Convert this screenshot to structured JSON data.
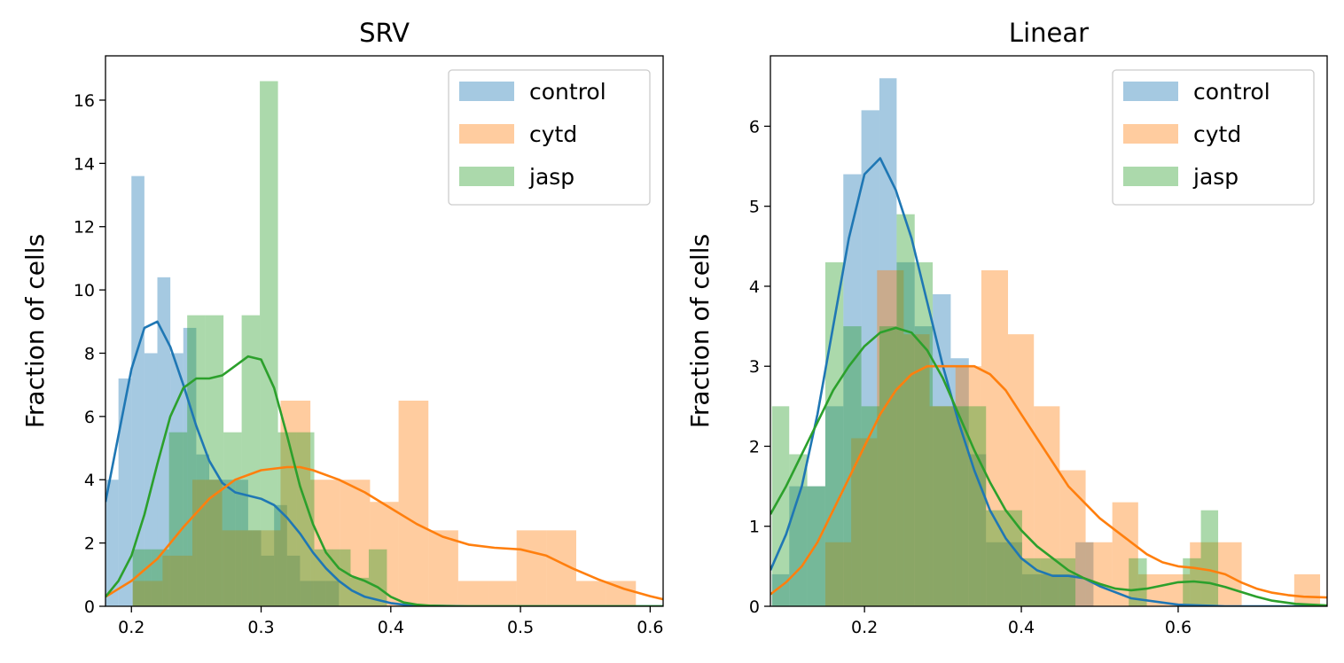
{
  "chart_data": [
    {
      "type": "bar",
      "title": "SRV",
      "xlabel": "",
      "ylabel": "Fraction of cells",
      "xlim": [
        0.18,
        0.61
      ],
      "ylim": [
        0,
        17.4
      ],
      "xticks": [
        0.2,
        0.3,
        0.4,
        0.5,
        0.6
      ],
      "xtick_labels": [
        "0.2",
        "0.3",
        "0.4",
        "0.5",
        "0.6"
      ],
      "yticks": [
        0,
        2,
        4,
        6,
        8,
        10,
        12,
        14,
        16
      ],
      "ytick_labels": [
        "0",
        "2",
        "4",
        "6",
        "8",
        "10",
        "12",
        "14",
        "16"
      ],
      "legend_position": "top-right",
      "grid": false,
      "series": [
        {
          "name": "control",
          "color": "#1f77b4",
          "hist_edges": [
            0.17,
            0.18,
            0.19,
            0.2,
            0.21,
            0.22,
            0.23,
            0.24,
            0.25,
            0.26,
            0.27,
            0.28,
            0.29,
            0.3,
            0.31,
            0.32,
            0.33,
            0.34,
            0.35,
            0.36
          ],
          "hist_values": [
            3.3,
            4.0,
            7.2,
            13.6,
            8.0,
            10.4,
            8.0,
            8.8,
            4.8,
            4.0,
            4.0,
            4.0,
            2.4,
            1.6,
            3.2,
            1.6,
            0.8,
            0.8,
            0.8
          ],
          "kde_x": [
            0.18,
            0.19,
            0.2,
            0.21,
            0.22,
            0.23,
            0.24,
            0.25,
            0.26,
            0.27,
            0.28,
            0.29,
            0.3,
            0.31,
            0.32,
            0.33,
            0.34,
            0.35,
            0.36,
            0.37,
            0.38,
            0.39,
            0.4,
            0.41,
            0.42,
            0.44,
            0.46,
            0.5,
            0.61
          ],
          "kde_y": [
            3.3,
            5.4,
            7.5,
            8.8,
            9.0,
            8.2,
            7.0,
            5.7,
            4.6,
            3.9,
            3.6,
            3.5,
            3.4,
            3.2,
            2.8,
            2.3,
            1.7,
            1.2,
            0.8,
            0.5,
            0.3,
            0.2,
            0.1,
            0.05,
            0.02,
            0.01,
            0.0,
            0.0,
            0.0
          ]
        },
        {
          "name": "cytd",
          "color": "#ff7f0e",
          "hist_edges": [
            0.179,
            0.201,
            0.224,
            0.247,
            0.27,
            0.293,
            0.315,
            0.338,
            0.361,
            0.384,
            0.406,
            0.429,
            0.452,
            0.475,
            0.497,
            0.52,
            0.543,
            0.566,
            0.589
          ],
          "hist_values": [
            0.0,
            0.8,
            1.6,
            4.0,
            2.4,
            2.4,
            6.5,
            4.0,
            4.0,
            3.3,
            6.5,
            2.4,
            0.8,
            0.8,
            2.4,
            2.4,
            0.8,
            0.8
          ],
          "kde_x": [
            0.18,
            0.2,
            0.22,
            0.24,
            0.26,
            0.28,
            0.3,
            0.32,
            0.33,
            0.34,
            0.36,
            0.38,
            0.4,
            0.42,
            0.44,
            0.46,
            0.48,
            0.5,
            0.52,
            0.54,
            0.56,
            0.58,
            0.6,
            0.61
          ],
          "kde_y": [
            0.3,
            0.8,
            1.5,
            2.5,
            3.4,
            4.0,
            4.3,
            4.4,
            4.4,
            4.3,
            4.0,
            3.6,
            3.1,
            2.6,
            2.2,
            1.95,
            1.85,
            1.8,
            1.6,
            1.2,
            0.85,
            0.55,
            0.32,
            0.22
          ]
        },
        {
          "name": "jasp",
          "color": "#2ca02c",
          "hist_edges": [
            0.201,
            0.215,
            0.229,
            0.243,
            0.257,
            0.271,
            0.285,
            0.299,
            0.313,
            0.327,
            0.341,
            0.355,
            0.369,
            0.383,
            0.397
          ],
          "hist_values": [
            1.8,
            1.8,
            5.5,
            9.2,
            9.2,
            5.5,
            9.2,
            16.6,
            5.5,
            5.5,
            1.8,
            1.8,
            0.9,
            1.8
          ],
          "kde_x": [
            0.18,
            0.19,
            0.2,
            0.21,
            0.22,
            0.23,
            0.24,
            0.25,
            0.26,
            0.27,
            0.28,
            0.29,
            0.3,
            0.31,
            0.32,
            0.33,
            0.34,
            0.35,
            0.36,
            0.37,
            0.38,
            0.39,
            0.4,
            0.41,
            0.42,
            0.43,
            0.45,
            0.61
          ],
          "kde_y": [
            0.3,
            0.8,
            1.6,
            2.9,
            4.5,
            6.0,
            6.9,
            7.2,
            7.2,
            7.3,
            7.6,
            7.9,
            7.8,
            6.9,
            5.4,
            3.8,
            2.6,
            1.7,
            1.2,
            0.95,
            0.8,
            0.6,
            0.3,
            0.12,
            0.05,
            0.02,
            0.0,
            0.0
          ]
        }
      ]
    },
    {
      "type": "bar",
      "title": "Linear",
      "xlabel": "",
      "ylabel": "Fraction of cells",
      "xlim": [
        0.08,
        0.79
      ],
      "ylim": [
        0,
        6.88
      ],
      "xticks": [
        0.2,
        0.4,
        0.6
      ],
      "xtick_labels": [
        "0.2",
        "0.4",
        "0.6"
      ],
      "yticks": [
        0,
        1,
        2,
        3,
        4,
        5,
        6
      ],
      "ytick_labels": [
        "0",
        "1",
        "2",
        "3",
        "4",
        "5",
        "6"
      ],
      "legend_position": "top-right",
      "grid": false,
      "series": [
        {
          "name": "control",
          "color": "#1f77b4",
          "hist_edges": [
            0.082,
            0.104,
            0.127,
            0.15,
            0.173,
            0.196,
            0.219,
            0.241,
            0.264,
            0.287,
            0.31,
            0.333,
            0.355,
            0.378,
            0.401,
            0.424,
            0.447,
            0.469,
            0.492
          ],
          "hist_values": [
            0.4,
            1.5,
            1.5,
            2.5,
            5.4,
            6.2,
            6.6,
            4.3,
            3.5,
            3.9,
            3.1,
            1.9,
            0.8,
            0.8,
            0.4,
            0.4,
            0.4,
            0.8
          ],
          "kde_x": [
            0.08,
            0.1,
            0.12,
            0.14,
            0.16,
            0.18,
            0.2,
            0.22,
            0.24,
            0.26,
            0.28,
            0.3,
            0.32,
            0.34,
            0.36,
            0.38,
            0.4,
            0.42,
            0.44,
            0.46,
            0.48,
            0.5,
            0.54,
            0.6,
            0.66,
            0.79
          ],
          "kde_y": [
            0.45,
            0.9,
            1.5,
            2.4,
            3.5,
            4.6,
            5.4,
            5.6,
            5.2,
            4.6,
            3.8,
            3.0,
            2.3,
            1.7,
            1.2,
            0.85,
            0.6,
            0.45,
            0.38,
            0.38,
            0.35,
            0.25,
            0.1,
            0.02,
            0.0,
            0.0
          ]
        },
        {
          "name": "cytd",
          "color": "#ff7f0e",
          "hist_edges": [
            0.15,
            0.183,
            0.216,
            0.25,
            0.283,
            0.316,
            0.349,
            0.383,
            0.416,
            0.449,
            0.482,
            0.516,
            0.549,
            0.582,
            0.615,
            0.648,
            0.681,
            0.715,
            0.748,
            0.781
          ],
          "hist_values": [
            0.8,
            2.1,
            4.2,
            3.4,
            2.5,
            3.0,
            4.2,
            3.4,
            2.5,
            1.7,
            0.8,
            1.3,
            0.4,
            0.4,
            0.8,
            0.8,
            0.0,
            0.0,
            0.4
          ],
          "kde_x": [
            0.08,
            0.1,
            0.12,
            0.14,
            0.16,
            0.18,
            0.2,
            0.22,
            0.24,
            0.26,
            0.28,
            0.3,
            0.32,
            0.34,
            0.36,
            0.38,
            0.4,
            0.42,
            0.44,
            0.46,
            0.48,
            0.5,
            0.52,
            0.54,
            0.56,
            0.58,
            0.6,
            0.62,
            0.64,
            0.66,
            0.68,
            0.7,
            0.72,
            0.74,
            0.76,
            0.79
          ],
          "kde_y": [
            0.15,
            0.3,
            0.5,
            0.8,
            1.2,
            1.6,
            2.0,
            2.4,
            2.7,
            2.9,
            3.0,
            3.0,
            3.0,
            3.0,
            2.9,
            2.7,
            2.4,
            2.1,
            1.8,
            1.5,
            1.3,
            1.1,
            0.95,
            0.8,
            0.65,
            0.55,
            0.5,
            0.48,
            0.45,
            0.4,
            0.3,
            0.22,
            0.17,
            0.14,
            0.12,
            0.11
          ]
        },
        {
          "name": "jasp",
          "color": "#2ca02c",
          "hist_edges": [
            0.082,
            0.104,
            0.127,
            0.15,
            0.173,
            0.196,
            0.219,
            0.241,
            0.264,
            0.287,
            0.31,
            0.333,
            0.355,
            0.378,
            0.401,
            0.424,
            0.447,
            0.469,
            0.492,
            0.515,
            0.537,
            0.56,
            0.583,
            0.606,
            0.629,
            0.651,
            0.674
          ],
          "hist_values": [
            2.5,
            1.9,
            1.5,
            4.3,
            3.5,
            2.5,
            3.5,
            4.9,
            4.3,
            2.5,
            2.5,
            2.5,
            1.2,
            1.2,
            0.6,
            0.6,
            0.6,
            0.0,
            0.0,
            0.0,
            0.6,
            0.0,
            0.0,
            0.6,
            1.2,
            0.0
          ],
          "kde_x": [
            0.08,
            0.1,
            0.12,
            0.14,
            0.16,
            0.18,
            0.2,
            0.22,
            0.24,
            0.26,
            0.28,
            0.3,
            0.32,
            0.34,
            0.36,
            0.38,
            0.4,
            0.42,
            0.44,
            0.46,
            0.48,
            0.5,
            0.52,
            0.54,
            0.56,
            0.58,
            0.6,
            0.62,
            0.64,
            0.66,
            0.68,
            0.7,
            0.72,
            0.75,
            0.79
          ],
          "kde_y": [
            1.15,
            1.5,
            1.9,
            2.3,
            2.7,
            3.0,
            3.25,
            3.42,
            3.48,
            3.42,
            3.2,
            2.85,
            2.4,
            1.95,
            1.55,
            1.2,
            0.95,
            0.75,
            0.6,
            0.45,
            0.35,
            0.28,
            0.22,
            0.2,
            0.22,
            0.26,
            0.3,
            0.31,
            0.29,
            0.24,
            0.18,
            0.12,
            0.07,
            0.03,
            0.01
          ]
        }
      ]
    }
  ]
}
